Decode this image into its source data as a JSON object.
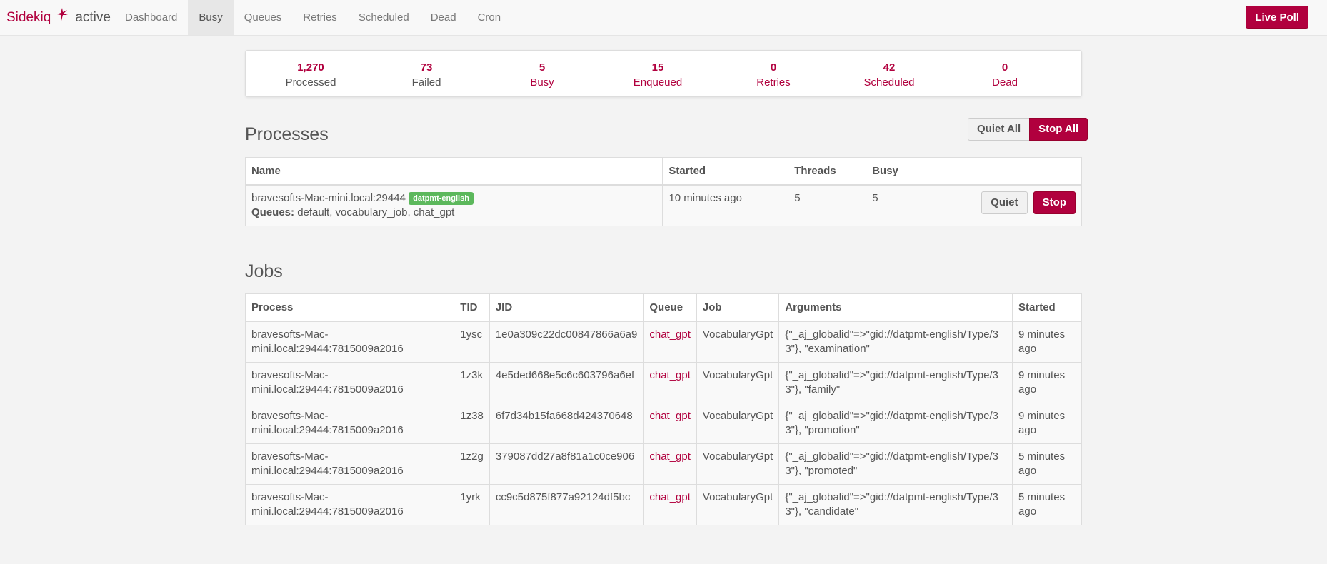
{
  "app": {
    "brand": "Sidekiq",
    "status": "active",
    "live_poll_label": "Live Poll",
    "colors": {
      "accent": "#b1003e",
      "badge": "#5cb85c"
    }
  },
  "nav": {
    "items": [
      {
        "label": "Dashboard"
      },
      {
        "label": "Busy",
        "active": true
      },
      {
        "label": "Queues"
      },
      {
        "label": "Retries"
      },
      {
        "label": "Scheduled"
      },
      {
        "label": "Dead"
      },
      {
        "label": "Cron"
      }
    ]
  },
  "summary": {
    "processed": {
      "count": "1,270",
      "label": "Processed"
    },
    "failed": {
      "count": "73",
      "label": "Failed"
    },
    "busy": {
      "count": "5",
      "label": "Busy"
    },
    "enqueued": {
      "count": "15",
      "label": "Enqueued"
    },
    "retries": {
      "count": "0",
      "label": "Retries"
    },
    "scheduled": {
      "count": "42",
      "label": "Scheduled"
    },
    "dead": {
      "count": "0",
      "label": "Dead"
    }
  },
  "processes": {
    "title": "Processes",
    "quiet_all_label": "Quiet All",
    "stop_all_label": "Stop All",
    "columns": {
      "name": "Name",
      "started": "Started",
      "threads": "Threads",
      "busy": "Busy"
    },
    "rows": [
      {
        "name": "bravesofts-Mac-mini.local:29444",
        "tag": "datpmt-english",
        "queues_label": "Queues:",
        "queues": "default, vocabulary_job, chat_gpt",
        "started": "10 minutes ago",
        "threads": "5",
        "busy": "5",
        "quiet_label": "Quiet",
        "stop_label": "Stop"
      }
    ]
  },
  "jobs": {
    "title": "Jobs",
    "columns": {
      "process": "Process",
      "tid": "TID",
      "jid": "JID",
      "queue": "Queue",
      "job": "Job",
      "arguments": "Arguments",
      "started": "Started"
    },
    "rows": [
      {
        "process": "bravesofts-Mac-mini.local:29444:7815009a2016",
        "tid": "1ysc",
        "jid": "1e0a309c22dc00847866a6a9",
        "queue": "chat_gpt",
        "job": "VocabularyGpt",
        "arguments": "{\"_aj_globalid\"=>\"gid://datpmt-english/Type/33\"}, \"examination\"",
        "started": "9 minutes ago"
      },
      {
        "process": "bravesofts-Mac-mini.local:29444:7815009a2016",
        "tid": "1z3k",
        "jid": "4e5ded668e5c6c603796a6ef",
        "queue": "chat_gpt",
        "job": "VocabularyGpt",
        "arguments": "{\"_aj_globalid\"=>\"gid://datpmt-english/Type/33\"}, \"family\"",
        "started": "9 minutes ago"
      },
      {
        "process": "bravesofts-Mac-mini.local:29444:7815009a2016",
        "tid": "1z38",
        "jid": "6f7d34b15fa668d424370648",
        "queue": "chat_gpt",
        "job": "VocabularyGpt",
        "arguments": "{\"_aj_globalid\"=>\"gid://datpmt-english/Type/33\"}, \"promotion\"",
        "started": "9 minutes ago"
      },
      {
        "process": "bravesofts-Mac-mini.local:29444:7815009a2016",
        "tid": "1z2g",
        "jid": "379087dd27a8f81a1c0ce906",
        "queue": "chat_gpt",
        "job": "VocabularyGpt",
        "arguments": "{\"_aj_globalid\"=>\"gid://datpmt-english/Type/33\"}, \"promoted\"",
        "started": "5 minutes ago"
      },
      {
        "process": "bravesofts-Mac-mini.local:29444:7815009a2016",
        "tid": "1yrk",
        "jid": "cc9c5d875f877a92124df5bc",
        "queue": "chat_gpt",
        "job": "VocabularyGpt",
        "arguments": "{\"_aj_globalid\"=>\"gid://datpmt-english/Type/33\"}, \"candidate\"",
        "started": "5 minutes ago"
      }
    ]
  }
}
